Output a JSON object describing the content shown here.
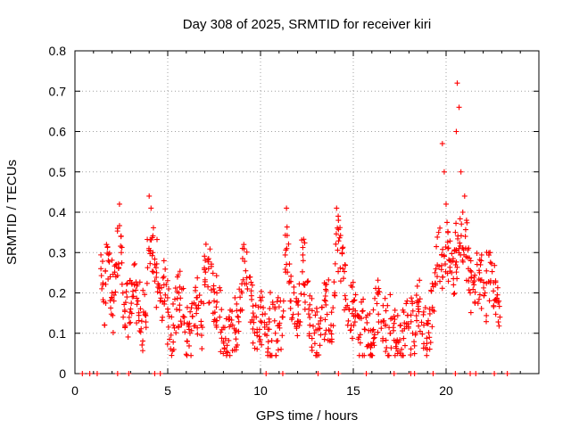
{
  "chart_data": {
    "type": "scatter",
    "title": "Day 308 of 2025, SRMTID for receiver kiri",
    "xlabel": "GPS time / hours",
    "ylabel": "SRMTID / TECUs",
    "xlim": [
      0,
      25
    ],
    "ylim": [
      0,
      0.8
    ],
    "xticks": [
      0,
      5,
      10,
      15,
      20
    ],
    "yticks": [
      0,
      0.1,
      0.2,
      0.3,
      0.4,
      0.5,
      0.6,
      0.7,
      0.8
    ],
    "xtick_labels": [
      "0",
      "5",
      "10",
      "15",
      "20"
    ],
    "ytick_labels": [
      "0",
      "0.1",
      "0.2",
      "0.3",
      "0.4",
      "0.5",
      "0.6",
      "0.7",
      "0.8"
    ],
    "grid": true,
    "marker": "+",
    "color": "#ff0000",
    "series": [
      {
        "name": "SRMTID",
        "x": [
          1.4,
          1.5,
          1.6,
          1.7,
          1.8,
          1.9,
          2.0,
          2.1,
          2.2,
          2.3,
          2.4,
          2.5,
          2.6,
          2.7,
          2.8,
          3.0,
          3.2,
          3.4,
          3.6,
          3.8,
          4.0,
          4.1,
          4.2,
          4.3,
          4.4,
          4.6,
          4.8,
          5.0,
          5.3,
          5.6,
          5.9,
          6.2,
          6.5,
          6.8,
          7.0,
          7.2,
          7.5,
          7.8,
          8.0,
          8.2,
          8.5,
          8.8,
          9.0,
          9.1,
          9.3,
          9.6,
          10.0,
          10.4,
          10.8,
          11.0,
          11.2,
          11.4,
          11.6,
          11.8,
          12.0,
          12.3,
          12.6,
          12.9,
          13.2,
          13.5,
          13.8,
          14.0,
          14.1,
          14.2,
          14.4,
          14.7,
          15.0,
          15.3,
          15.6,
          16.0,
          16.3,
          16.6,
          17.0,
          17.3,
          17.6,
          17.9,
          18.2,
          18.5,
          18.8,
          19.1,
          19.4,
          19.6,
          19.8,
          19.9,
          20.0,
          20.1,
          20.2,
          20.3,
          20.4,
          20.5,
          20.55,
          20.6,
          20.7,
          20.8,
          20.9,
          21.0,
          21.1,
          21.2,
          21.3,
          21.5,
          21.8,
          22.1,
          22.4,
          22.7,
          22.9
        ],
        "y": [
          0.26,
          0.22,
          0.12,
          0.32,
          0.28,
          0.24,
          0.2,
          0.18,
          0.27,
          0.36,
          0.42,
          0.3,
          0.14,
          0.12,
          0.19,
          0.16,
          0.22,
          0.18,
          0.13,
          0.15,
          0.44,
          0.41,
          0.3,
          0.27,
          0.25,
          0.2,
          0.22,
          0.16,
          0.12,
          0.2,
          0.14,
          0.1,
          0.17,
          0.12,
          0.22,
          0.26,
          0.18,
          0.14,
          0.08,
          0.07,
          0.12,
          0.14,
          0.2,
          0.32,
          0.21,
          0.15,
          0.13,
          0.11,
          0.1,
          0.12,
          0.14,
          0.41,
          0.18,
          0.2,
          0.13,
          0.28,
          0.16,
          0.1,
          0.07,
          0.18,
          0.12,
          0.2,
          0.41,
          0.38,
          0.3,
          0.12,
          0.16,
          0.09,
          0.11,
          0.07,
          0.2,
          0.13,
          0.1,
          0.08,
          0.06,
          0.18,
          0.1,
          0.16,
          0.12,
          0.09,
          0.25,
          0.35,
          0.57,
          0.5,
          0.42,
          0.31,
          0.28,
          0.25,
          0.22,
          0.35,
          0.6,
          0.72,
          0.66,
          0.5,
          0.4,
          0.44,
          0.38,
          0.26,
          0.2,
          0.22,
          0.25,
          0.2,
          0.23,
          0.18,
          0.14
        ],
        "zero_x": [
          0.4,
          0.8,
          1.2,
          2.3,
          2.9,
          4.3,
          4.6,
          10.3,
          11.2,
          13.1,
          14.2,
          15.7,
          17.2,
          18.1,
          18.3,
          19.3,
          20.5,
          21.3,
          21.6,
          22.6,
          23.3
        ]
      }
    ]
  }
}
